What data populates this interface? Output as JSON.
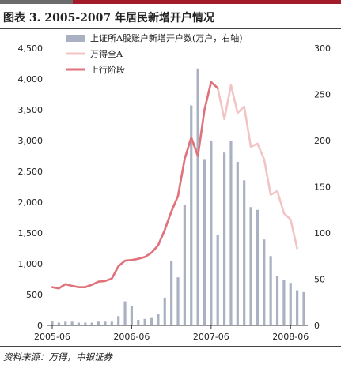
{
  "page": {
    "title": "图表 3. 2005-2007 年居民新增开户情况",
    "source": "资料来源：万得，中银证券"
  },
  "chart_data": {
    "type": "bar",
    "title": "图表 3. 2005-2007 年居民新增开户情况",
    "x": [
      "2005-06",
      "2005-07",
      "2005-08",
      "2005-09",
      "2005-10",
      "2005-11",
      "2005-12",
      "2006-01",
      "2006-02",
      "2006-03",
      "2006-04",
      "2006-05",
      "2006-06",
      "2006-07",
      "2006-08",
      "2006-09",
      "2006-10",
      "2006-11",
      "2006-12",
      "2007-01",
      "2007-02",
      "2007-03",
      "2007-04",
      "2007-05",
      "2007-06",
      "2007-07",
      "2007-08",
      "2007-09",
      "2007-10",
      "2007-11",
      "2007-12",
      "2008-01",
      "2008-02",
      "2008-03",
      "2008-04",
      "2008-05",
      "2008-06",
      "2008-07",
      "2008-08"
    ],
    "xticks": [
      "2005-06",
      "2006-06",
      "2007-06",
      "2008-06"
    ],
    "ylim_left": [
      0,
      4500
    ],
    "yticks_left": [
      "0",
      "500",
      "1,000",
      "1,500",
      "2,000",
      "2,500",
      "3,000",
      "3,500",
      "4,000",
      "4,500"
    ],
    "ylim_right": [
      0,
      300
    ],
    "yticks_right": [
      "0",
      "50",
      "100",
      "150",
      "200",
      "250",
      "300"
    ],
    "legend_position": "top-center",
    "grid": false,
    "colors": {
      "bars": "#a9b1c2",
      "index_all": "#f2c4c4",
      "index_rising": "#e0727b"
    },
    "series": [
      {
        "name": "上证所A股账户新增开户数(万户，右轴)",
        "type": "bar",
        "axis": "right",
        "values": [
          5,
          3,
          4,
          4,
          3,
          3,
          3,
          4,
          4,
          4,
          10,
          26,
          21,
          6,
          7,
          8,
          12,
          30,
          70,
          52,
          130,
          238,
          278,
          180,
          200,
          98,
          187,
          200,
          177,
          157,
          128,
          125,
          93,
          75,
          53,
          49,
          46,
          38,
          36
        ]
      },
      {
        "name": "万得全A",
        "type": "line",
        "axis": "left",
        "values": [
          620,
          600,
          670,
          640,
          620,
          620,
          660,
          710,
          720,
          760,
          960,
          1050,
          1060,
          1080,
          1110,
          1180,
          1300,
          1550,
          1850,
          2100,
          2700,
          3050,
          2750,
          3500,
          3950,
          3850,
          3350,
          3900,
          3450,
          3550,
          2900,
          2950,
          2700,
          2120,
          2180,
          1820,
          1720,
          1250,
          null
        ]
      },
      {
        "name": "上行阶段",
        "type": "line",
        "axis": "left",
        "values": [
          620,
          600,
          670,
          640,
          620,
          620,
          660,
          710,
          720,
          760,
          960,
          1050,
          1060,
          1080,
          1110,
          1180,
          1300,
          1550,
          1850,
          2100,
          2700,
          3050,
          2750,
          3500,
          3950,
          3850,
          null,
          null,
          null,
          null,
          null,
          null,
          null,
          null,
          null,
          null,
          null,
          null,
          null
        ]
      }
    ]
  }
}
